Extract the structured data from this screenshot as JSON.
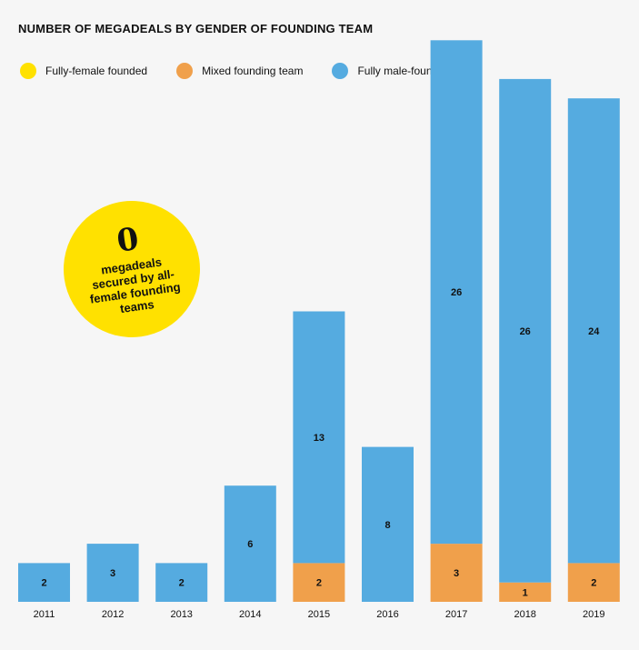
{
  "title": "NUMBER OF MEGADEALS BY GENDER OF FOUNDING TEAM",
  "legend": [
    {
      "label": "Fully-female founded",
      "color": "#ffe100"
    },
    {
      "label": "Mixed founding team",
      "color": "#f0a04b"
    },
    {
      "label": "Fully male-founded",
      "color": "#55abe0"
    }
  ],
  "callout": {
    "number": "0",
    "text": "megadeals secured by all-female founding teams"
  },
  "chart_data": {
    "type": "bar",
    "stacked": true,
    "categories": [
      "2011",
      "2012",
      "2013",
      "2014",
      "2015",
      "2016",
      "2017",
      "2018",
      "2019"
    ],
    "series": [
      {
        "name": "Fully-female founded",
        "color": "#ffe100",
        "values": [
          0,
          0,
          0,
          0,
          0,
          0,
          0,
          0,
          0
        ]
      },
      {
        "name": "Mixed founding team",
        "color": "#f0a04b",
        "values": [
          0,
          0,
          0,
          0,
          2,
          0,
          3,
          1,
          2
        ]
      },
      {
        "name": "Fully male-founded",
        "color": "#55abe0",
        "values": [
          2,
          3,
          2,
          6,
          13,
          8,
          26,
          26,
          24
        ]
      }
    ],
    "title": "NUMBER OF MEGADEALS BY GENDER OF FOUNDING TEAM",
    "xlabel": "",
    "ylabel": "",
    "ylim": [
      0,
      29
    ],
    "grid": false,
    "legend_position": "top-left"
  }
}
